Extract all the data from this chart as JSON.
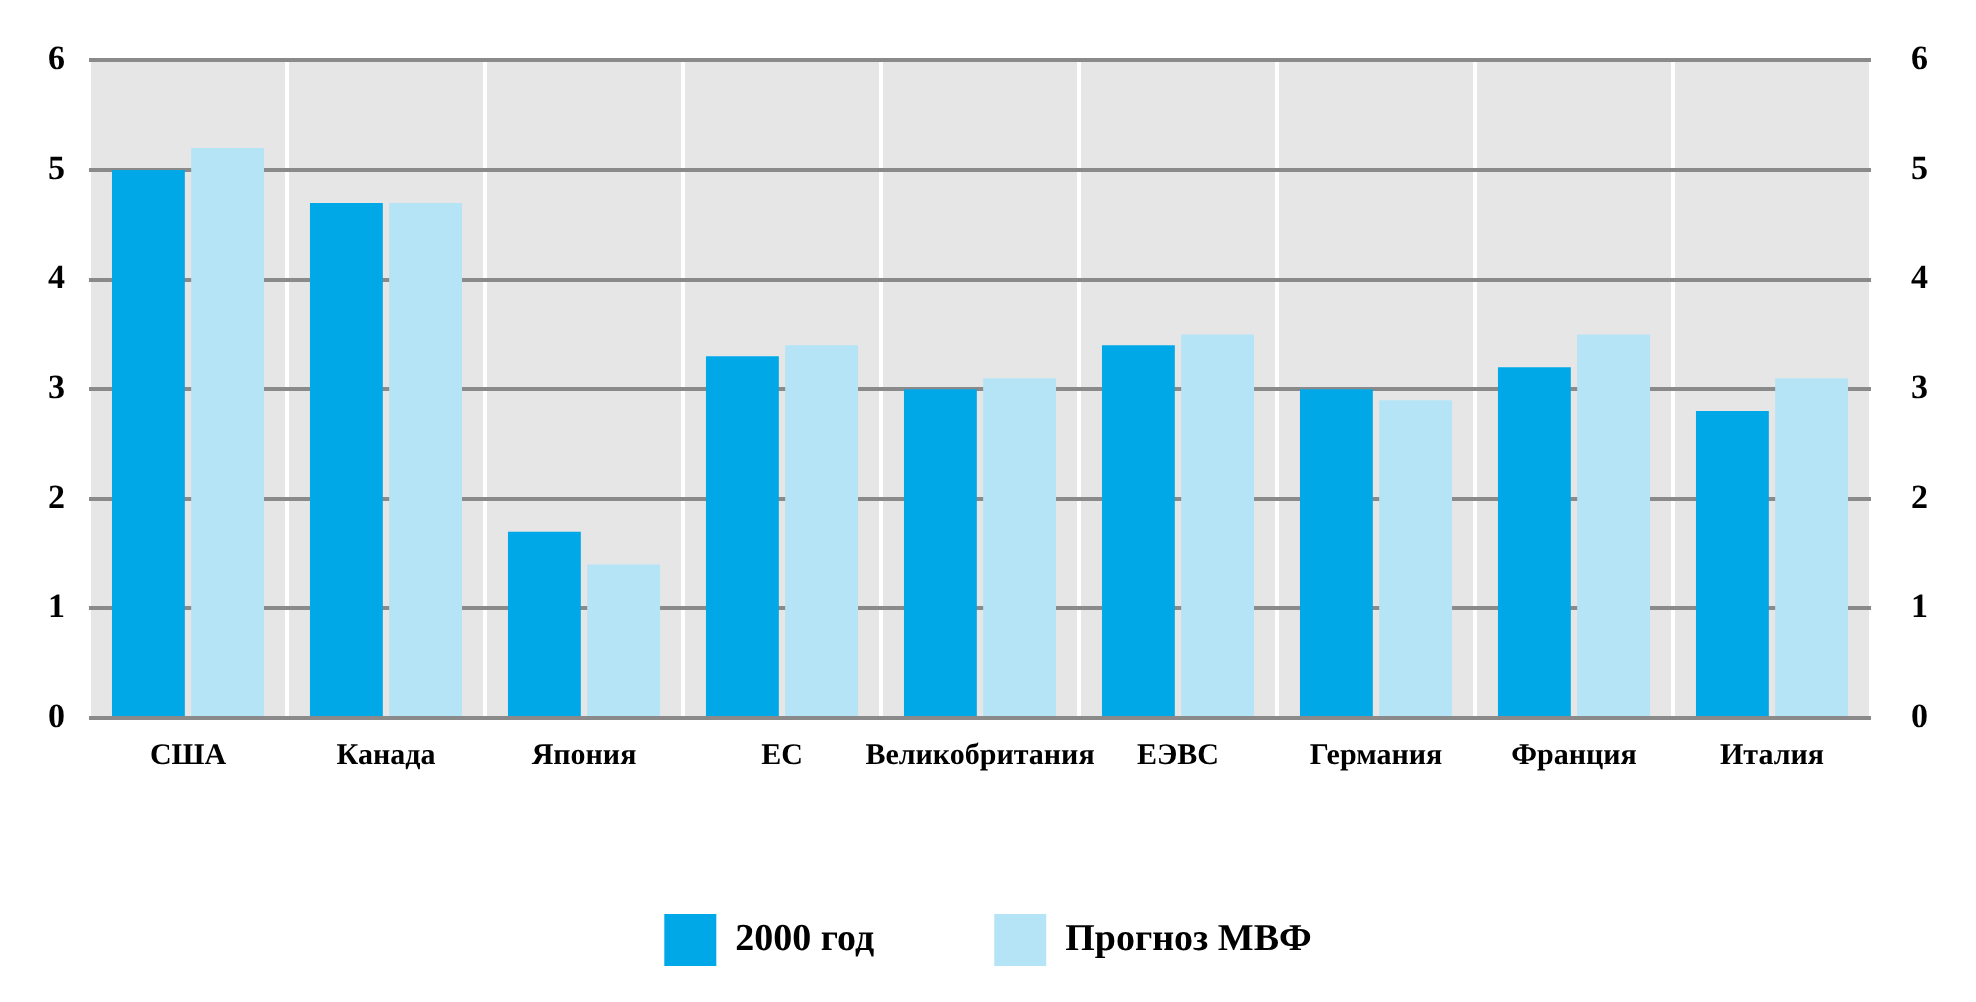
{
  "chart_data": {
    "type": "bar",
    "categories": [
      "США",
      "Канада",
      "Япония",
      "ЕС",
      "Великобритания",
      "ЕЭВС",
      "Германия",
      "Франция",
      "Италия"
    ],
    "series": [
      {
        "name": "2000 год",
        "color": "#00a8e8",
        "values": [
          5.0,
          4.7,
          1.7,
          3.3,
          3.0,
          3.4,
          3.0,
          3.2,
          2.8
        ]
      },
      {
        "name": "Прогноз МВФ",
        "color": "#b6e4f7",
        "values": [
          5.2,
          4.7,
          1.4,
          3.4,
          3.1,
          3.5,
          2.9,
          3.5,
          3.1
        ]
      }
    ],
    "ylim": [
      0,
      6
    ],
    "yticks": [
      0,
      1,
      2,
      3,
      4,
      5,
      6
    ],
    "y2lim": [
      0,
      6
    ],
    "y2ticks": [
      0,
      1,
      2,
      3,
      4,
      5,
      6
    ],
    "grid": true,
    "legend": "bottom"
  }
}
